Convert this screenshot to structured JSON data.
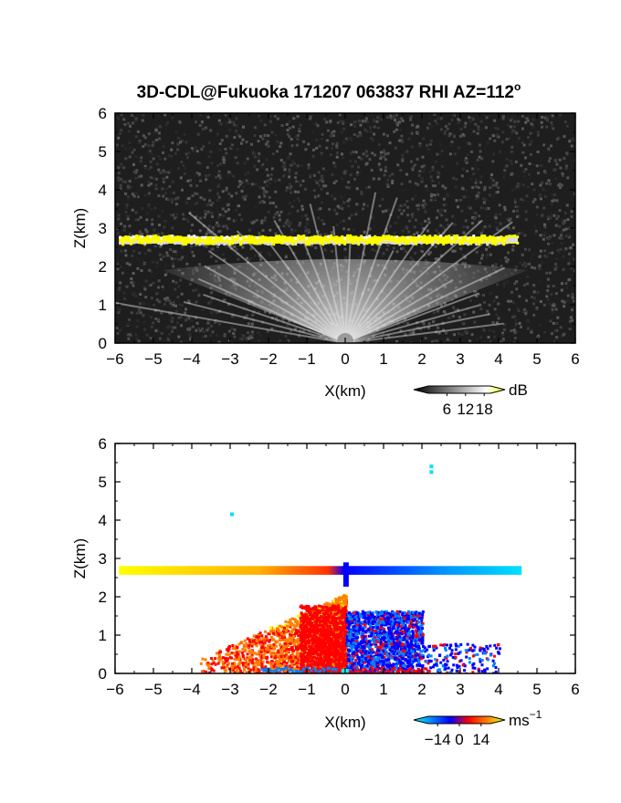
{
  "title": "3D-CDL@Fukuoka 171207 063837 RHI AZ=112",
  "title_superscript": "o",
  "chart_data": [
    {
      "type": "heatmap",
      "panel": "reflectivity",
      "xlabel": "X(km)",
      "ylabel": "Z(km)",
      "xlim": [
        -6,
        6
      ],
      "ylim": [
        0,
        6
      ],
      "x_ticks": [
        -6,
        -5,
        -4,
        -3,
        -2,
        -1,
        0,
        1,
        2,
        3,
        4,
        5,
        6
      ],
      "y_ticks": [
        0,
        1,
        2,
        3,
        4,
        5,
        6
      ],
      "background_color": "#1e1e1e",
      "layer": {
        "x_range": [
          -5.9,
          4.5
        ],
        "z_range": [
          2.55,
          2.85
        ],
        "color": "#ffff00"
      },
      "beam_origin": [
        0,
        0
      ],
      "colorbar": {
        "label": "dB",
        "ticks": [
          6,
          12,
          18
        ],
        "range": [
          0,
          20
        ],
        "colors": [
          "#000000",
          "#404040",
          "#808080",
          "#bfbfbf",
          "#ffffff",
          "#ffff00"
        ]
      }
    },
    {
      "type": "heatmap",
      "panel": "doppler-velocity",
      "xlabel": "X(km)",
      "ylabel": "Z(km)",
      "xlim": [
        -6,
        6
      ],
      "ylim": [
        0,
        6
      ],
      "x_ticks": [
        -6,
        -5,
        -4,
        -3,
        -2,
        -1,
        0,
        1,
        2,
        3,
        4,
        5,
        6
      ],
      "y_ticks": [
        0,
        1,
        2,
        3,
        4,
        5,
        6
      ],
      "background_color": "#ffffff",
      "layer": {
        "x_range": [
          -5.9,
          4.6
        ],
        "z_range": [
          2.55,
          2.85
        ]
      },
      "colorbar": {
        "label": "ms",
        "label_superscript": "−1",
        "ticks": [
          -14,
          0,
          14
        ],
        "tick_labels": [
          "−14",
          "0",
          "14"
        ],
        "range": [
          -20,
          20
        ],
        "colors": [
          "#00ffff",
          "#0080ff",
          "#0000ff",
          "#ff0000",
          "#ff8000",
          "#ffff00"
        ]
      }
    }
  ]
}
